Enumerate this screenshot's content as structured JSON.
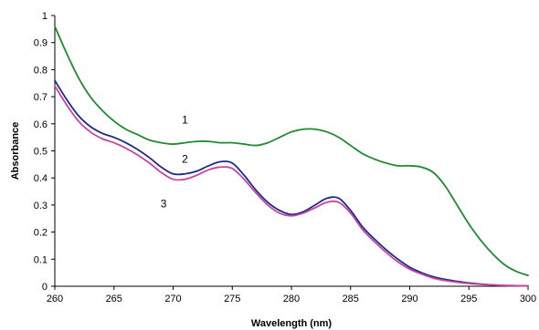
{
  "chart_data": {
    "type": "line",
    "title": "",
    "xlabel": "Wavelength (nm)",
    "ylabel": "Absorbance",
    "xlim": [
      260,
      300
    ],
    "ylim": [
      0,
      1
    ],
    "xticks": [
      260,
      265,
      270,
      275,
      280,
      285,
      290,
      295,
      300
    ],
    "yticks": [
      0,
      0.1,
      0.2,
      0.3,
      0.4,
      0.5,
      0.6,
      0.7,
      0.8,
      0.9,
      1
    ],
    "xtick_labels": [
      "260",
      "265",
      "270",
      "275",
      "280",
      "285",
      "290",
      "295",
      "300"
    ],
    "ytick_labels": [
      "0",
      "0.1",
      "0.2",
      "0.3",
      "0.4",
      "0.5",
      "0.6",
      "0.7",
      "0.8",
      "0.9",
      "1"
    ],
    "grid": false,
    "legend": "none",
    "series": [
      {
        "name": "1",
        "color": "#1f8a2e",
        "x": [
          260,
          261,
          262,
          263,
          264,
          265,
          266,
          267,
          268,
          269,
          270,
          271,
          272,
          273,
          274,
          275,
          276,
          277,
          278,
          279,
          280,
          281,
          282,
          283,
          284,
          285,
          286,
          287,
          288,
          289,
          290,
          291,
          292,
          293,
          294,
          295,
          296,
          297,
          298,
          299,
          300
        ],
        "y": [
          0.96,
          0.86,
          0.77,
          0.7,
          0.65,
          0.61,
          0.58,
          0.56,
          0.54,
          0.53,
          0.525,
          0.53,
          0.535,
          0.535,
          0.53,
          0.53,
          0.525,
          0.52,
          0.53,
          0.55,
          0.57,
          0.58,
          0.58,
          0.57,
          0.55,
          0.52,
          0.49,
          0.47,
          0.455,
          0.445,
          0.445,
          0.44,
          0.42,
          0.37,
          0.3,
          0.23,
          0.17,
          0.12,
          0.08,
          0.055,
          0.04
        ]
      },
      {
        "name": "2",
        "color": "#1c2a8c",
        "x": [
          260,
          261,
          262,
          263,
          264,
          265,
          266,
          267,
          268,
          269,
          270,
          271,
          272,
          273,
          274,
          275,
          276,
          277,
          278,
          279,
          280,
          281,
          282,
          283,
          284,
          285,
          286,
          287,
          288,
          289,
          290,
          291,
          292,
          293,
          294,
          295,
          296,
          297,
          298,
          299,
          300
        ],
        "y": [
          0.76,
          0.69,
          0.63,
          0.59,
          0.565,
          0.55,
          0.53,
          0.505,
          0.475,
          0.44,
          0.415,
          0.415,
          0.425,
          0.445,
          0.46,
          0.455,
          0.41,
          0.355,
          0.31,
          0.28,
          0.265,
          0.275,
          0.3,
          0.325,
          0.325,
          0.28,
          0.22,
          0.175,
          0.135,
          0.1,
          0.07,
          0.05,
          0.035,
          0.025,
          0.018,
          0.012,
          0.008,
          0.005,
          0.003,
          0.002,
          0.001
        ]
      },
      {
        "name": "3",
        "color": "#c8449f",
        "x": [
          260,
          261,
          262,
          263,
          264,
          265,
          266,
          267,
          268,
          269,
          270,
          271,
          272,
          273,
          274,
          275,
          276,
          277,
          278,
          279,
          280,
          281,
          282,
          283,
          284,
          285,
          286,
          287,
          288,
          289,
          290,
          291,
          292,
          293,
          294,
          295,
          296,
          297,
          298,
          299,
          300
        ],
        "y": [
          0.74,
          0.67,
          0.61,
          0.57,
          0.545,
          0.53,
          0.51,
          0.485,
          0.455,
          0.42,
          0.395,
          0.395,
          0.41,
          0.43,
          0.44,
          0.435,
          0.395,
          0.345,
          0.3,
          0.27,
          0.26,
          0.27,
          0.29,
          0.31,
          0.31,
          0.27,
          0.21,
          0.165,
          0.125,
          0.09,
          0.063,
          0.045,
          0.03,
          0.021,
          0.015,
          0.01,
          0.007,
          0.005,
          0.003,
          0.002,
          0.001
        ]
      }
    ],
    "annotations": [
      {
        "text": "1",
        "x": 271,
        "y": 0.615
      },
      {
        "text": "2",
        "x": 271,
        "y": 0.47
      },
      {
        "text": "3",
        "x": 269.2,
        "y": 0.305
      }
    ]
  }
}
